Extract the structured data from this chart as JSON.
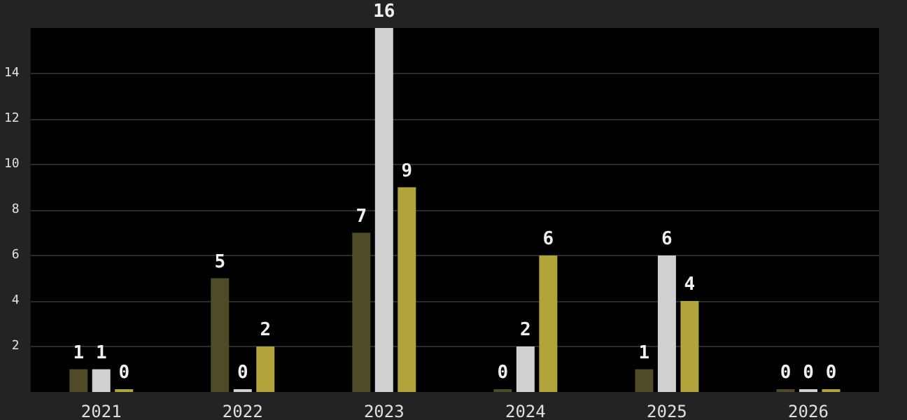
{
  "chart_data": {
    "type": "bar",
    "categories": [
      "2021",
      "2022",
      "2023",
      "2024",
      "2025",
      "2026"
    ],
    "series": [
      {
        "color": "#4f4b26",
        "values": [
          1,
          5,
          7,
          0,
          1,
          0
        ]
      },
      {
        "color": "#d0d0d0",
        "values": [
          1,
          0,
          16,
          2,
          6,
          0
        ]
      },
      {
        "color": "#b0a43a",
        "values": [
          0,
          2,
          9,
          6,
          4,
          0
        ]
      }
    ],
    "ylim": [
      0,
      16
    ],
    "yticks": [
      2,
      4,
      6,
      8,
      10,
      12,
      14
    ],
    "grid": "y",
    "data_labels": true
  }
}
